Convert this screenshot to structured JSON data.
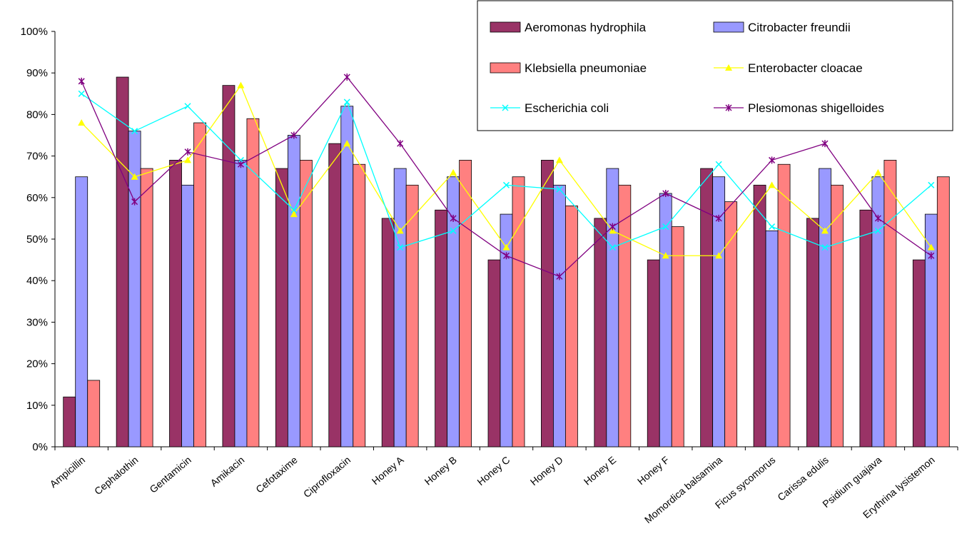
{
  "chart_data": {
    "type": "bar",
    "categories": [
      "Ampicillin",
      "Cephalothin",
      "Gentamicin",
      "Amikacin",
      "Cefotaxime",
      "Ciprofloxacin",
      "Honey A",
      "Honey B",
      "Honey C",
      "Honey D",
      "Honey E",
      "Honey F",
      "Momordica balsamina",
      "Ficus sycomorus",
      "Carissa edulis",
      "Psidium guajava",
      "Erythrina lysistemon"
    ],
    "ylim": [
      0,
      100
    ],
    "yticks": [
      "0%",
      "10%",
      "20%",
      "30%",
      "40%",
      "50%",
      "60%",
      "70%",
      "80%",
      "90%",
      "100%"
    ],
    "grid": false,
    "legend_position": "top-right",
    "bar_series": [
      {
        "name": "Aeromonas hydrophila",
        "color": "#993366",
        "values": [
          12,
          89,
          69,
          87,
          67,
          73,
          55,
          57,
          45,
          69,
          55,
          45,
          67,
          63,
          55,
          57,
          45
        ]
      },
      {
        "name": "Citrobacter freundii",
        "color": "#9999FF",
        "values": [
          65,
          76,
          63,
          69,
          75,
          82,
          67,
          65,
          56,
          63,
          67,
          61,
          65,
          52,
          67,
          65,
          56
        ]
      },
      {
        "name": "Klebsiella pneumoniae",
        "color": "#FF8080",
        "values": [
          16,
          67,
          78,
          79,
          69,
          68,
          63,
          69,
          65,
          58,
          63,
          53,
          59,
          68,
          63,
          69,
          65
        ]
      }
    ],
    "line_series": [
      {
        "name": "Enterobacter cloacae",
        "color": "#FFFF00",
        "marker": "triangle",
        "values": [
          78,
          65,
          69,
          87,
          56,
          73,
          52,
          66,
          48,
          69,
          52,
          46,
          46,
          63,
          52,
          66,
          48
        ]
      },
      {
        "name": "Escherichia coli",
        "color": "#00FFFF",
        "marker": "x",
        "values": [
          85,
          76,
          82,
          69,
          57,
          83,
          48,
          52,
          63,
          62,
          48,
          53,
          68,
          53,
          48,
          52,
          63
        ]
      },
      {
        "name": "Plesiomonas shigelloides",
        "color": "#800080",
        "marker": "star",
        "values": [
          88,
          59,
          71,
          68,
          75,
          89,
          73,
          55,
          46,
          41,
          53,
          61,
          55,
          69,
          73,
          55,
          46
        ]
      }
    ],
    "legend_order": [
      "Aeromonas hydrophila",
      "Citrobacter freundii",
      "Klebsiella pneumoniae",
      "Enterobacter cloacae",
      "Escherichia coli",
      "Plesiomonas shigelloides"
    ]
  }
}
